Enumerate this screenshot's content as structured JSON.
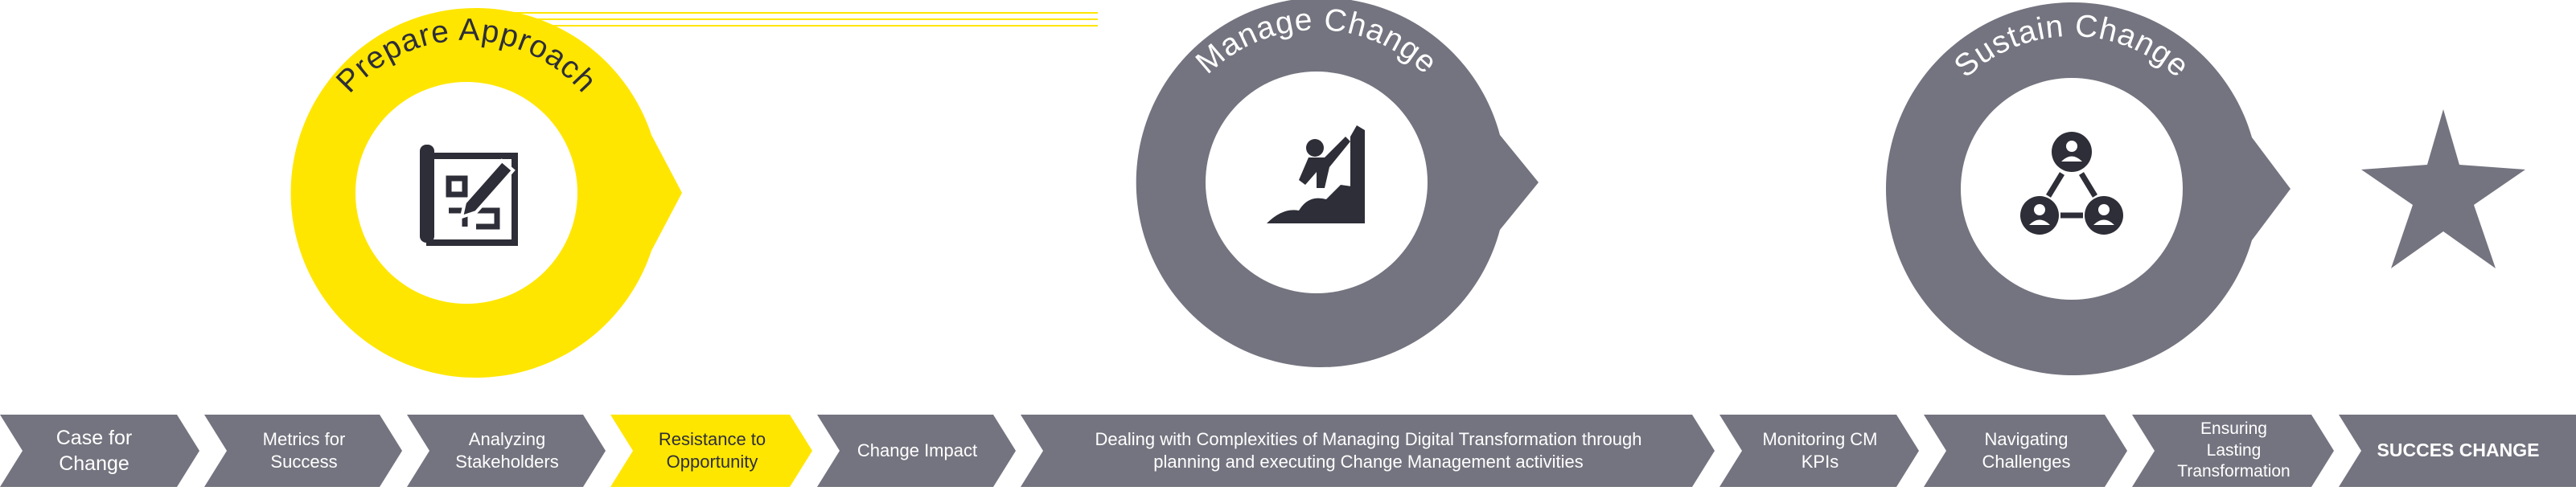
{
  "colors": {
    "yellow": "#ffe600",
    "grey": "#747480",
    "dark": "#2e2e38",
    "white": "#ffffff"
  },
  "phases": [
    {
      "title": "Prepare Approach",
      "icon": "blueprint-icon",
      "color": "#ffe600",
      "text_color": "#2e2e38"
    },
    {
      "title": "Manage Change",
      "icon": "climber-icon",
      "color": "#747480",
      "text_color": "#ffffff"
    },
    {
      "title": "Sustain Change",
      "icon": "network-icon",
      "color": "#747480",
      "text_color": "#ffffff"
    }
  ],
  "goal_icon": "star-icon",
  "steps": [
    {
      "label": "Case for\nChange",
      "active": false
    },
    {
      "label": "Metrics for\nSuccess",
      "active": false
    },
    {
      "label": "Analyzing\nStakeholders",
      "active": false
    },
    {
      "label": "Resistance to\nOpportunity",
      "active": true
    },
    {
      "label": "Change Impact",
      "active": false
    },
    {
      "label": "Dealing with Complexities of Managing Digital Transformation through\nplanning and executing Change Management activities",
      "active": false
    },
    {
      "label": "Monitoring CM\nKPIs",
      "active": false
    },
    {
      "label": "Navigating\nChallenges",
      "active": false
    },
    {
      "label": "Ensuring\nLasting\nTransformation",
      "active": false
    },
    {
      "label": "SUCCES CHANGE",
      "active": false
    }
  ]
}
